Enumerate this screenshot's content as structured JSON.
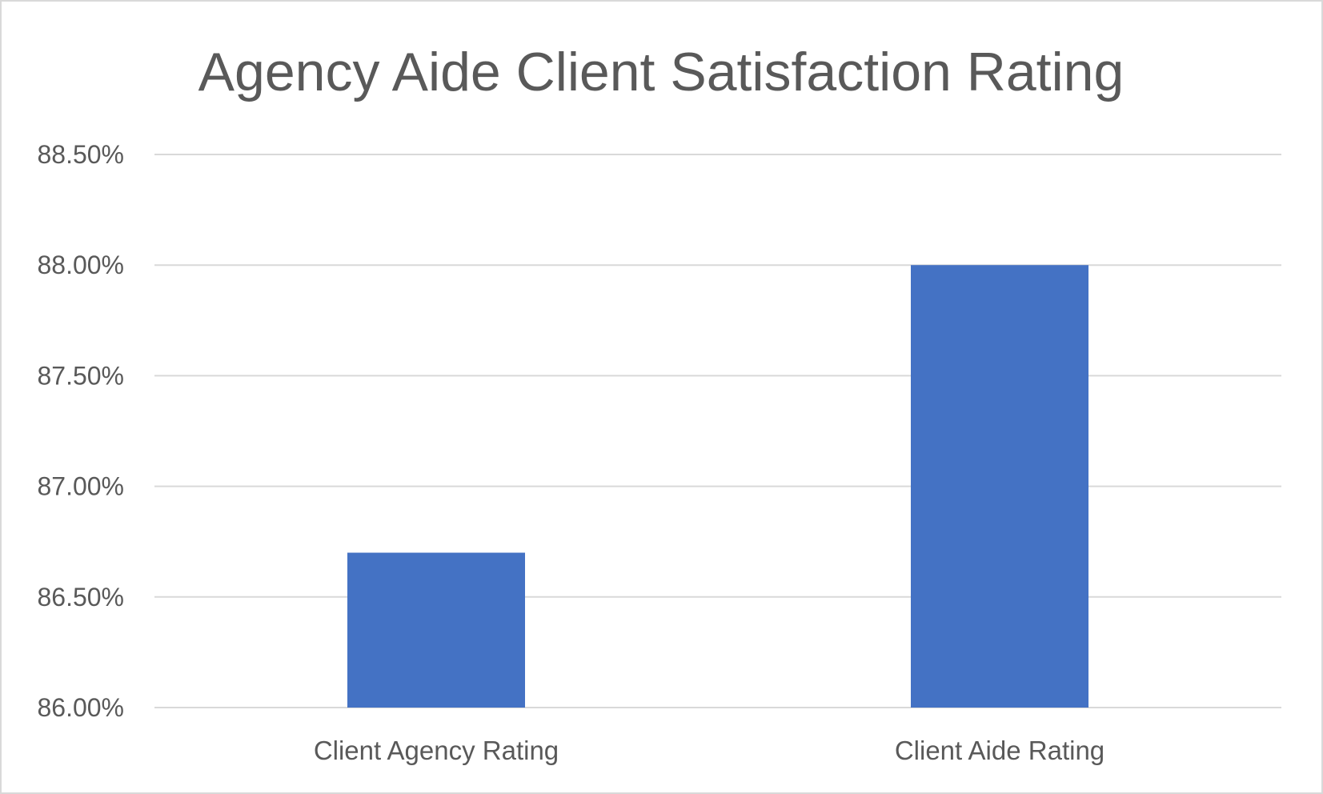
{
  "chart_data": {
    "type": "bar",
    "title": "Agency Aide Client Satisfaction Rating",
    "xlabel": "",
    "ylabel": "",
    "categories": [
      "Client Agency Rating",
      "Client Aide Rating"
    ],
    "values": [
      86.7,
      88.0
    ],
    "ylim": [
      86.0,
      88.5
    ],
    "y_ticks": [
      86.0,
      86.5,
      87.0,
      87.5,
      88.0,
      88.5
    ],
    "y_tick_labels": [
      "86.00%",
      "86.50%",
      "87.00%",
      "87.50%",
      "88.00%",
      "88.50%"
    ],
    "grid": true,
    "legend": "none",
    "bar_color": "#4472c4"
  }
}
